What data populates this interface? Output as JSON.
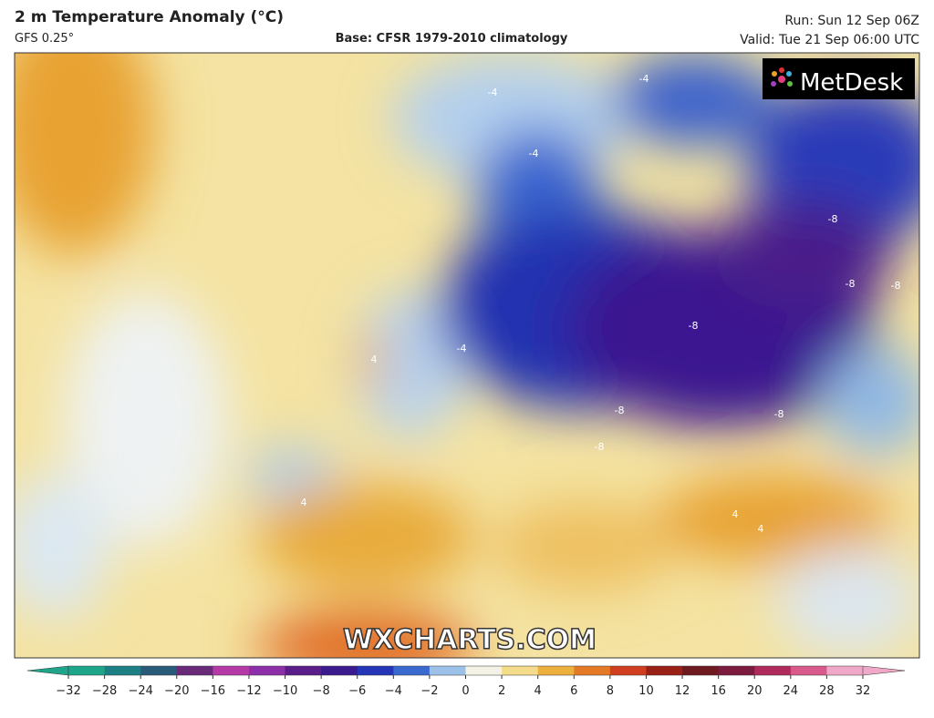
{
  "header": {
    "title": "2 m Temperature Anomaly (°C)",
    "model": "GFS 0.25°",
    "base": "Base: CFSR 1979-2010 climatology",
    "run": "Run: Sun 12 Sep 06Z",
    "valid": "Valid: Tue 21 Sep 06:00 UTC"
  },
  "logo": "MetDesk",
  "watermark": "WXCHARTS.COM",
  "contour_labels": [
    -4,
    -4,
    -4,
    -4,
    -8,
    -8,
    -8,
    -8,
    -8,
    -8,
    -8,
    4,
    4,
    4,
    4
  ],
  "colorbar": {
    "ticks": [
      {
        "value": -32,
        "label": "−32"
      },
      {
        "value": -28,
        "label": "−28"
      },
      {
        "value": -24,
        "label": "−24"
      },
      {
        "value": -20,
        "label": "−20"
      },
      {
        "value": -16,
        "label": "−16"
      },
      {
        "value": -12,
        "label": "−12"
      },
      {
        "value": -10,
        "label": "−10"
      },
      {
        "value": -8,
        "label": "−8"
      },
      {
        "value": -6,
        "label": "−6"
      },
      {
        "value": -4,
        "label": "−4"
      },
      {
        "value": -2,
        "label": "−2"
      },
      0,
      2,
      4,
      6,
      8,
      10,
      12,
      16,
      20,
      24,
      28,
      32
    ],
    "colors": [
      "#1fa58a",
      "#1c7f84",
      "#2a5a7a",
      "#6a2a7a",
      "#b53aa6",
      "#8d2fa8",
      "#5a1d8a",
      "#3a1a8c",
      "#2435b8",
      "#3a6ad0",
      "#9cc2ea",
      "#f4f2e6",
      "#f5dc8a",
      "#eeb03c",
      "#e57a26",
      "#cf3e1e",
      "#9a2016",
      "#6e1a1e",
      "#7c1b3e",
      "#b02a5c",
      "#d85a8c",
      "#f0a8c8"
    ]
  }
}
